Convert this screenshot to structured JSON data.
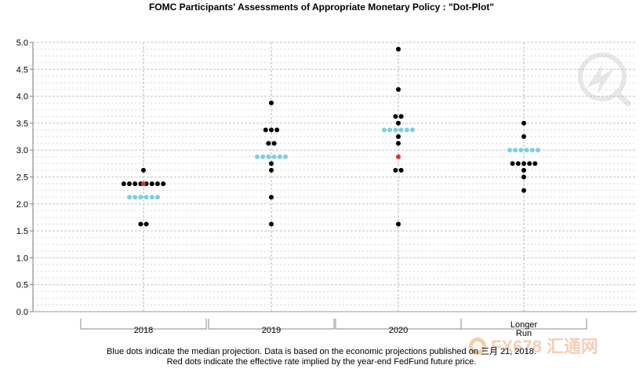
{
  "chart_data": {
    "type": "scatter",
    "title": "FOMC Participants' Assessments of Appropriate Monetary Policy : \"Dot-Plot\"",
    "xlabel": "",
    "ylabel": "",
    "ylim": [
      0,
      5
    ],
    "yticks": [
      "0.0",
      "0.5",
      "1.0",
      "1.5",
      "2.0",
      "2.5",
      "3.0",
      "3.5",
      "4.0",
      "4.5",
      "5.0"
    ],
    "grid": true,
    "categories": [
      "2018",
      "2019",
      "2020",
      "Longer\nRun"
    ],
    "series": [
      {
        "color": "#000000",
        "points": [
          {
            "x": "2018",
            "y": 2.625,
            "count": 1
          },
          {
            "x": "2018",
            "y": 2.375,
            "count": 8
          },
          {
            "x": "2018",
            "y": 1.625,
            "count": 2
          },
          {
            "x": "2019",
            "y": 3.875,
            "count": 1
          },
          {
            "x": "2019",
            "y": 3.375,
            "count": 3
          },
          {
            "x": "2019",
            "y": 3.125,
            "count": 2
          },
          {
            "x": "2019",
            "y": 2.75,
            "count": 1
          },
          {
            "x": "2019",
            "y": 2.625,
            "count": 1
          },
          {
            "x": "2019",
            "y": 2.125,
            "count": 1
          },
          {
            "x": "2019",
            "y": 1.625,
            "count": 1
          },
          {
            "x": "2020",
            "y": 4.875,
            "count": 1
          },
          {
            "x": "2020",
            "y": 4.125,
            "count": 1
          },
          {
            "x": "2020",
            "y": 3.625,
            "count": 2
          },
          {
            "x": "2020",
            "y": 3.5,
            "count": 1
          },
          {
            "x": "2020",
            "y": 3.25,
            "count": 1
          },
          {
            "x": "2020",
            "y": 3.125,
            "count": 1
          },
          {
            "x": "2020",
            "y": 2.625,
            "count": 2
          },
          {
            "x": "2020",
            "y": 1.625,
            "count": 1
          },
          {
            "x": "Longer\nRun",
            "y": 3.5,
            "count": 1
          },
          {
            "x": "Longer\nRun",
            "y": 3.25,
            "count": 1
          },
          {
            "x": "Longer\nRun",
            "y": 2.75,
            "count": 5
          },
          {
            "x": "Longer\nRun",
            "y": 2.625,
            "count": 1
          },
          {
            "x": "Longer\nRun",
            "y": 2.5,
            "count": 1
          },
          {
            "x": "Longer\nRun",
            "y": 2.25,
            "count": 1
          }
        ]
      },
      {
        "color": "#7ecfe0",
        "points": [
          {
            "x": "2018",
            "y": 2.125,
            "count": 6
          },
          {
            "x": "2019",
            "y": 2.875,
            "count": 6
          },
          {
            "x": "2020",
            "y": 3.375,
            "count": 6
          },
          {
            "x": "Longer\nRun",
            "y": 3.0,
            "count": 6
          }
        ]
      },
      {
        "color": "#e03030",
        "points": [
          {
            "x": "2018",
            "y": 2.375,
            "count": 1
          },
          {
            "x": "2020",
            "y": 2.875,
            "count": 1
          }
        ]
      }
    ]
  },
  "footnote": {
    "line1": "Blue dots indicate the median projection. Data is based on the economic projections published on 三月 21, 2018.",
    "line2": "Red dots indicate the effective rate implied by the year-end FedFund future price."
  },
  "watermark": {
    "text": "FX678 汇通网",
    "icon": "fx678-logo-icon",
    "corner_icon": "lightning-magnifier-icon"
  }
}
